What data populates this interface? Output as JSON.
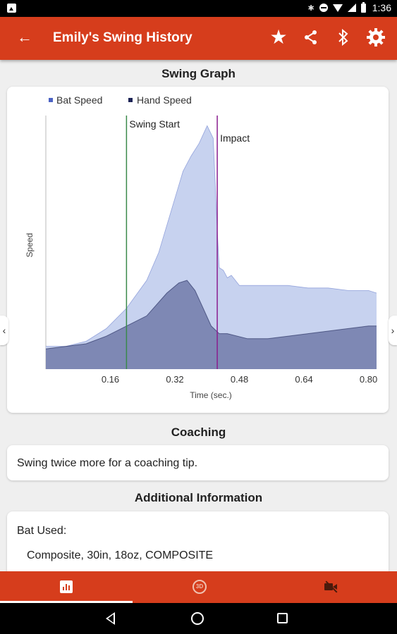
{
  "status_bar": {
    "time": "1:36"
  },
  "app_bar": {
    "title": "Emily's Swing History",
    "back_icon": "arrow-left-icon",
    "actions": [
      "star-icon",
      "share-icon",
      "bluetooth-icon",
      "gear-icon"
    ]
  },
  "sections": {
    "graph_title": "Swing Graph",
    "coaching_title": "Coaching",
    "info_title": "Additional Information"
  },
  "coaching": {
    "text": "Swing twice more for a coaching tip."
  },
  "info": {
    "bat_label": "Bat Used:",
    "bat_value": "Composite, 30in, 18oz, COMPOSITE"
  },
  "chart_data": {
    "type": "area",
    "xlabel": "Time (sec.)",
    "ylabel": "Speed",
    "xlim": [
      0.0,
      0.82
    ],
    "ylim": [
      0,
      1
    ],
    "x_ticks": [
      "0.16",
      "0.32",
      "0.48",
      "0.64",
      "0.80"
    ],
    "legend_position": "top-left",
    "colors": {
      "bat": "#c7d2ef",
      "bat_line": "#4c63c4",
      "hand": "#7e88b4",
      "hand_line": "#1d2456",
      "swing_start": "#3a8a4a",
      "impact": "#8a1e8f"
    },
    "series": [
      {
        "name": "Bat Speed",
        "x": [
          0.0,
          0.05,
          0.1,
          0.15,
          0.2,
          0.25,
          0.28,
          0.31,
          0.34,
          0.36,
          0.38,
          0.4,
          0.415,
          0.425,
          0.43,
          0.44,
          0.45,
          0.46,
          0.47,
          0.48,
          0.5,
          0.55,
          0.6,
          0.65,
          0.7,
          0.75,
          0.8,
          0.82
        ],
        "y": [
          0.09,
          0.09,
          0.11,
          0.16,
          0.24,
          0.35,
          0.46,
          0.62,
          0.78,
          0.84,
          0.89,
          0.96,
          0.91,
          0.55,
          0.4,
          0.39,
          0.36,
          0.37,
          0.35,
          0.33,
          0.33,
          0.33,
          0.33,
          0.32,
          0.32,
          0.31,
          0.31,
          0.3
        ]
      },
      {
        "name": "Hand Speed",
        "x": [
          0.0,
          0.05,
          0.1,
          0.15,
          0.2,
          0.25,
          0.3,
          0.33,
          0.35,
          0.37,
          0.39,
          0.41,
          0.43,
          0.45,
          0.5,
          0.55,
          0.6,
          0.65,
          0.7,
          0.75,
          0.8,
          0.82
        ],
        "y": [
          0.08,
          0.09,
          0.1,
          0.13,
          0.17,
          0.21,
          0.3,
          0.34,
          0.35,
          0.31,
          0.24,
          0.17,
          0.14,
          0.14,
          0.12,
          0.12,
          0.13,
          0.14,
          0.15,
          0.16,
          0.17,
          0.17
        ]
      }
    ],
    "markers": [
      {
        "label": "Swing Start",
        "x": 0.2
      },
      {
        "label": "Impact",
        "x": 0.425
      }
    ]
  },
  "bottom_tabs": [
    {
      "icon": "graph-icon",
      "active": true
    },
    {
      "icon": "3d-rotate-icon",
      "label": "3D",
      "active": false
    },
    {
      "icon": "video-off-icon",
      "active": false
    }
  ]
}
